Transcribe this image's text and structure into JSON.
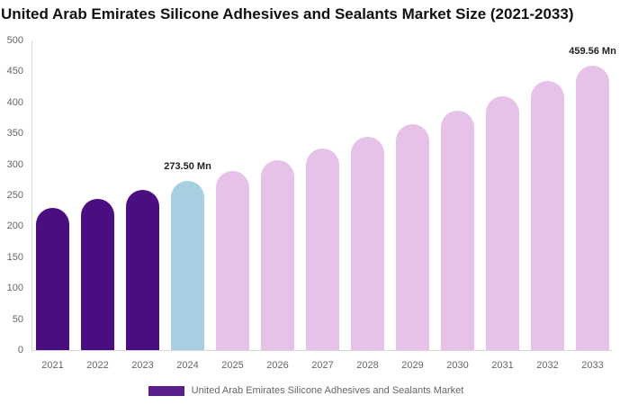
{
  "title": "United Arab Emirates Silicone Adhesives and Sealants Market Size (2021-2033)",
  "colors": {
    "historical": "#4B0E80",
    "highlight": "#A8CEE2",
    "forecast": "#E6C2E8",
    "legend_swatch": "#5A1E8C",
    "axis_line": "#D8D8D8",
    "axis_text": "#666666",
    "data_label_text": "#222222"
  },
  "legend": {
    "label": "United Arab Emirates Silicone Adhesives and Sealants Market"
  },
  "chart_data": {
    "type": "bar",
    "title": "United Arab Emirates Silicone Adhesives and Sealants Market Size (2021-2033)",
    "xlabel": "",
    "ylabel": "",
    "unit": "Mn",
    "categories": [
      "2021",
      "2022",
      "2023",
      "2024",
      "2025",
      "2026",
      "2027",
      "2028",
      "2029",
      "2030",
      "2031",
      "2032",
      "2033"
    ],
    "values": [
      230.04,
      243.7,
      258.17,
      273.5,
      289.74,
      306.94,
      325.17,
      344.48,
      364.93,
      386.6,
      409.55,
      433.87,
      459.56
    ],
    "point_styles": [
      "historical",
      "historical",
      "historical",
      "highlight",
      "forecast",
      "forecast",
      "forecast",
      "forecast",
      "forecast",
      "forecast",
      "forecast",
      "forecast",
      "forecast"
    ],
    "data_labels": [
      {
        "category": "2024",
        "text": "273.50 Mn"
      },
      {
        "category": "2033",
        "text": "459.56 Mn"
      }
    ],
    "ylim": [
      0,
      500
    ],
    "y_ticks": [
      0,
      50,
      100,
      150,
      200,
      250,
      300,
      350,
      400,
      450,
      500
    ],
    "grid": false,
    "legend_position": "bottom",
    "legend_entries": [
      "United Arab Emirates Silicone Adhesives and Sealants Market"
    ]
  }
}
